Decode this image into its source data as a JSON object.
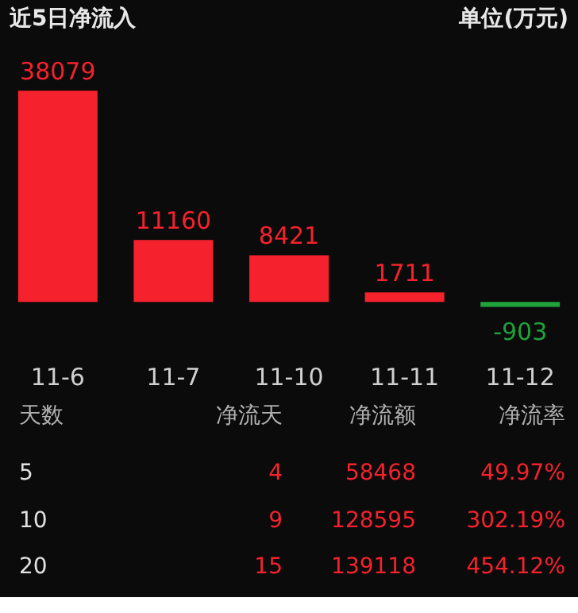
{
  "chart_data": [
    {
      "type": "bar",
      "title": "近5日净流入",
      "subtitle": "单位(万元)",
      "categories": [
        "11-6",
        "11-7",
        "11-10",
        "11-11",
        "11-12"
      ],
      "values": [
        38079,
        11160,
        8421,
        1711,
        -903
      ],
      "colors": [
        "#f5222d",
        "#f5222d",
        "#f5222d",
        "#f5222d",
        "#1fa23a"
      ],
      "data_labels": true
    },
    {
      "type": "other",
      "annotations": [
        "天数",
        "净流天",
        "净流额",
        "净流率",
        "5",
        "4",
        "58468",
        "49.97%",
        "10",
        "9",
        "128595",
        "302.19%",
        "20",
        "15",
        "139118",
        "454.12%"
      ]
    }
  ]
}
